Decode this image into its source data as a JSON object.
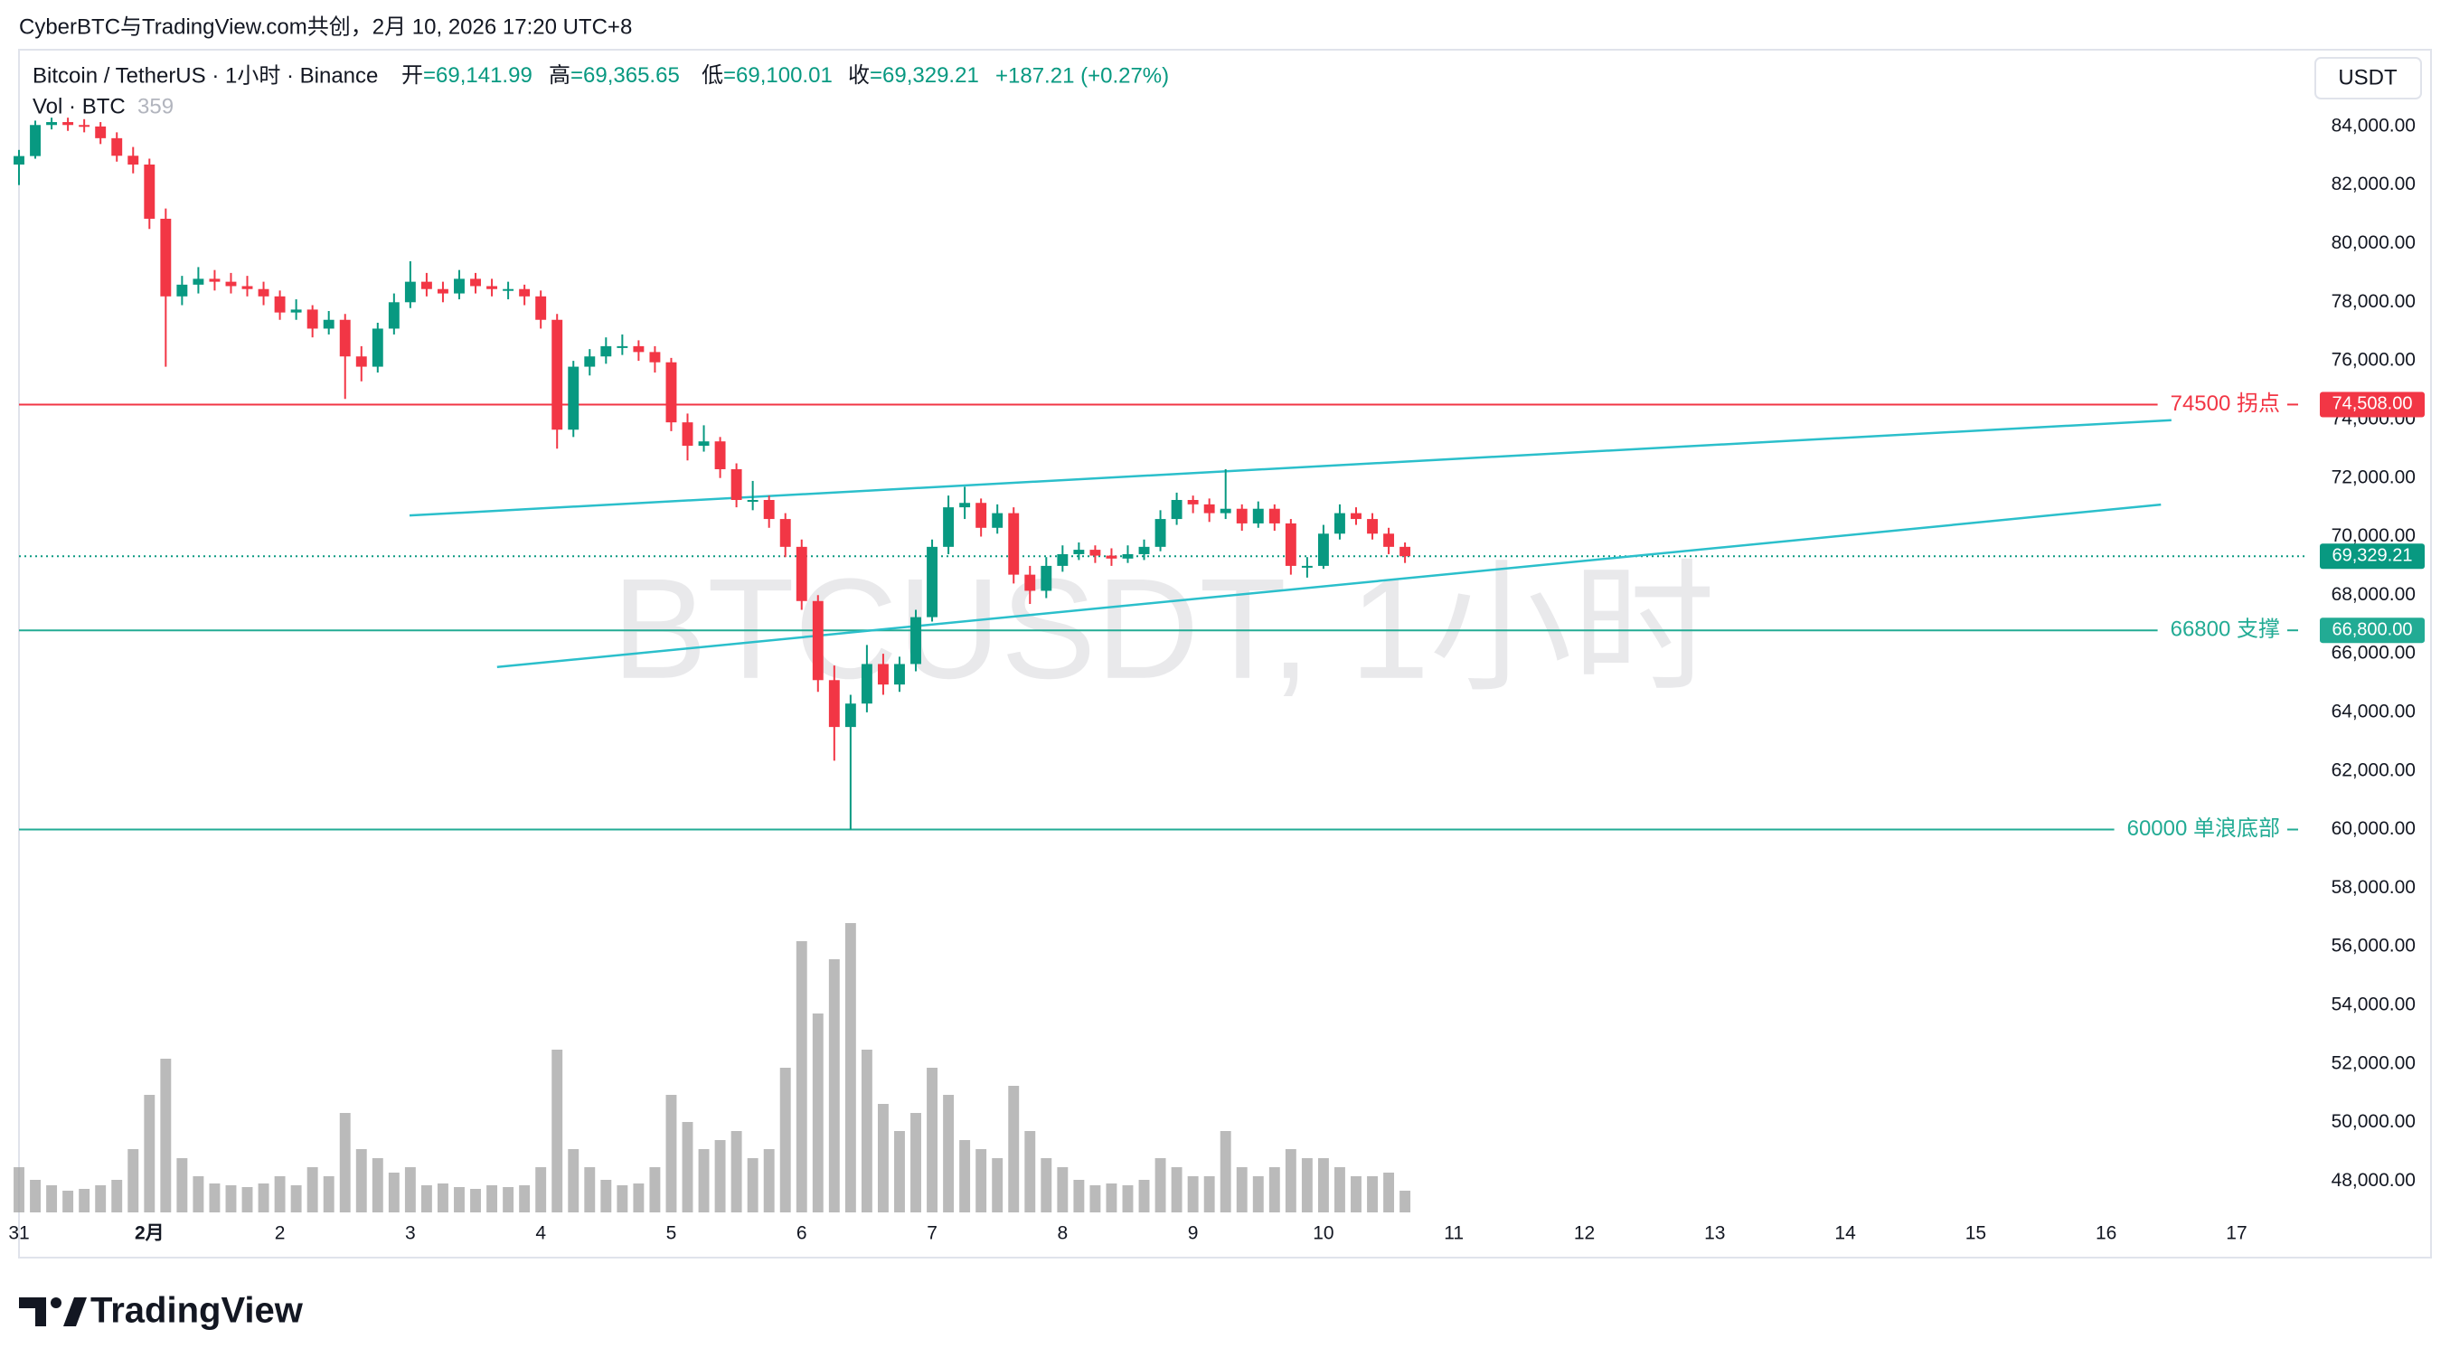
{
  "header": {
    "credit": "CyberBTC与TradingView.com共创，2月 10, 2026 17:20 UTC+8",
    "symbol": "Bitcoin / TetherUS · 1小时 · Binance",
    "ohlc": [
      {
        "label": "开",
        "value": "=69,141.99"
      },
      {
        "label": "高",
        "value": "=69,365.65"
      },
      {
        "label": "低",
        "value": "=69,100.01"
      },
      {
        "label": "收",
        "value": "=69,329.21"
      }
    ],
    "change": "+187.21 (+0.27%)",
    "volume_label": "Vol · BTC",
    "volume_value": "359",
    "currency": "USDT"
  },
  "watermark": "BTCUSDT, 1小时",
  "brand": "TradingView",
  "chart_data": {
    "type": "candlestick",
    "up_color": "#089981",
    "down_color": "#f23645",
    "volume_color": "#a3a3a3",
    "x": [
      0,
      0.125,
      0.25,
      0.375,
      0.5,
      0.625,
      0.75,
      0.875,
      1,
      1.125,
      1.25,
      1.375,
      1.5,
      1.625,
      1.75,
      1.875,
      2,
      2.125,
      2.25,
      2.375,
      2.5,
      2.625,
      2.75,
      2.875,
      3,
      3.125,
      3.25,
      3.375,
      3.5,
      3.625,
      3.75,
      3.875,
      4,
      4.125,
      4.25,
      4.375,
      4.5,
      4.625,
      4.75,
      4.875,
      5,
      5.125,
      5.25,
      5.375,
      5.5,
      5.625,
      5.75,
      5.875,
      6,
      6.125,
      6.25,
      6.375,
      6.5,
      6.625,
      6.75,
      6.875,
      7,
      7.125,
      7.25,
      7.375,
      7.5,
      7.625,
      7.75,
      7.875,
      8,
      8.125,
      8.25,
      8.375,
      8.5,
      8.625,
      8.75,
      8.875,
      9,
      9.125,
      9.25,
      9.375,
      9.5,
      9.625,
      9.75,
      9.875,
      10,
      10.125,
      10.25,
      10.375,
      10.5,
      10.625
    ],
    "ohlc": [
      [
        82700,
        83200,
        82000,
        82990
      ],
      [
        82990,
        84200,
        82900,
        84050
      ],
      [
        84050,
        84300,
        83900,
        84150
      ],
      [
        84150,
        84300,
        83850,
        84050
      ],
      [
        84050,
        84250,
        83800,
        84000
      ],
      [
        84000,
        84150,
        83400,
        83600
      ],
      [
        83600,
        83800,
        82800,
        83000
      ],
      [
        83000,
        83300,
        82400,
        82700
      ],
      [
        82700,
        82900,
        80500,
        80850
      ],
      [
        80850,
        81200,
        75800,
        78200
      ],
      [
        78200,
        78900,
        77900,
        78600
      ],
      [
        78600,
        79200,
        78300,
        78800
      ],
      [
        78800,
        79100,
        78400,
        78700
      ],
      [
        78700,
        79000,
        78300,
        78550
      ],
      [
        78550,
        78900,
        78200,
        78450
      ],
      [
        78450,
        78700,
        77900,
        78200
      ],
      [
        78200,
        78400,
        77400,
        77650
      ],
      [
        77650,
        78100,
        77400,
        77750
      ],
      [
        77750,
        77900,
        76800,
        77100
      ],
      [
        77100,
        77700,
        76900,
        77400
      ],
      [
        77400,
        77600,
        74700,
        76150
      ],
      [
        76150,
        76500,
        75300,
        75800
      ],
      [
        75800,
        77300,
        75600,
        77100
      ],
      [
        77100,
        78300,
        76900,
        78000
      ],
      [
        78000,
        79400,
        77800,
        78700
      ],
      [
        78700,
        79000,
        78200,
        78450
      ],
      [
        78450,
        78700,
        78000,
        78300
      ],
      [
        78300,
        79100,
        78100,
        78800
      ],
      [
        78800,
        79000,
        78300,
        78550
      ],
      [
        78550,
        78800,
        78200,
        78450
      ],
      [
        78450,
        78700,
        78100,
        78450
      ],
      [
        78450,
        78600,
        77900,
        78200
      ],
      [
        78200,
        78400,
        77100,
        77400
      ],
      [
        77400,
        77600,
        73000,
        73650
      ],
      [
        73650,
        76000,
        73400,
        75800
      ],
      [
        75800,
        76400,
        75500,
        76150
      ],
      [
        76150,
        76800,
        75900,
        76500
      ],
      [
        76500,
        76900,
        76200,
        76500
      ],
      [
        76500,
        76700,
        76000,
        76300
      ],
      [
        76300,
        76500,
        75600,
        75950
      ],
      [
        75950,
        76100,
        73600,
        73900
      ],
      [
        73900,
        74200,
        72600,
        73100
      ],
      [
        73100,
        73800,
        72900,
        73250
      ],
      [
        73250,
        73400,
        72000,
        72300
      ],
      [
        72300,
        72500,
        71000,
        71250
      ],
      [
        71250,
        71900,
        70900,
        71250
      ],
      [
        71250,
        71400,
        70300,
        70600
      ],
      [
        70600,
        70800,
        69300,
        69650
      ],
      [
        69650,
        69900,
        67500,
        67800
      ],
      [
        67800,
        68000,
        64700,
        65100
      ],
      [
        65100,
        65600,
        62350,
        63500
      ],
      [
        63500,
        64600,
        60000,
        64300
      ],
      [
        64300,
        66300,
        64000,
        65650
      ],
      [
        65650,
        66000,
        64600,
        64950
      ],
      [
        64950,
        65900,
        64700,
        65650
      ],
      [
        65650,
        67500,
        65400,
        67250
      ],
      [
        67250,
        69900,
        67100,
        69650
      ],
      [
        69650,
        71400,
        69400,
        71000
      ],
      [
        71000,
        71700,
        70600,
        71150
      ],
      [
        71150,
        71300,
        70000,
        70300
      ],
      [
        70300,
        71100,
        70100,
        70800
      ],
      [
        70800,
        71000,
        68400,
        68700
      ],
      [
        68700,
        69000,
        67700,
        68150
      ],
      [
        68150,
        69300,
        67900,
        69000
      ],
      [
        69000,
        69700,
        68800,
        69400
      ],
      [
        69400,
        69800,
        69200,
        69550
      ],
      [
        69550,
        69700,
        69100,
        69350
      ],
      [
        69350,
        69600,
        69000,
        69250
      ],
      [
        69250,
        69700,
        69100,
        69400
      ],
      [
        69400,
        69900,
        69200,
        69650
      ],
      [
        69650,
        70900,
        69500,
        70600
      ],
      [
        70600,
        71500,
        70400,
        71250
      ],
      [
        71250,
        71400,
        70800,
        71100
      ],
      [
        71100,
        71300,
        70500,
        70800
      ],
      [
        70800,
        72300,
        70600,
        70950
      ],
      [
        70950,
        71100,
        70200,
        70450
      ],
      [
        70450,
        71200,
        70300,
        70950
      ],
      [
        70950,
        71100,
        70200,
        70450
      ],
      [
        70450,
        70600,
        68700,
        69000
      ],
      [
        69000,
        69300,
        68600,
        69000
      ],
      [
        69000,
        70400,
        68900,
        70100
      ],
      [
        70100,
        71100,
        69900,
        70800
      ],
      [
        70800,
        71000,
        70400,
        70600
      ],
      [
        70600,
        70800,
        69900,
        70100
      ],
      [
        70100,
        70300,
        69400,
        69650
      ],
      [
        69650,
        69800,
        69100,
        69329.21
      ]
    ],
    "volume": [
      2500,
      1800,
      1500,
      1200,
      1300,
      1500,
      1800,
      3500,
      6500,
      8500,
      3000,
      2000,
      1600,
      1500,
      1400,
      1600,
      2000,
      1500,
      2500,
      2000,
      5500,
      3500,
      3000,
      2200,
      2500,
      1500,
      1600,
      1400,
      1300,
      1500,
      1400,
      1500,
      2500,
      9000,
      3500,
      2500,
      1800,
      1500,
      1600,
      2500,
      6500,
      5000,
      3500,
      4000,
      4500,
      3000,
      3500,
      8000,
      15000,
      11000,
      14000,
      16000,
      9000,
      6000,
      4500,
      5500,
      8000,
      6500,
      4000,
      3500,
      3000,
      7000,
      4500,
      3000,
      2500,
      1800,
      1500,
      1600,
      1500,
      1800,
      3000,
      2500,
      2000,
      2000,
      4500,
      2500,
      2000,
      2500,
      3500,
      3000,
      3000,
      2500,
      2000,
      2000,
      2200,
      1200
    ],
    "xlim": [
      0,
      17.52
    ],
    "ylim": [
      46930,
      86620
    ],
    "xticks": [
      {
        "value": 0,
        "label": "31"
      },
      {
        "value": 1,
        "label": "2月"
      },
      2,
      3,
      4,
      5,
      6,
      7,
      8,
      9,
      10,
      11,
      12,
      13,
      14,
      15,
      16,
      17
    ],
    "yticks": [
      {
        "value": 48000,
        "label": "48,000.00"
      },
      {
        "value": 50000,
        "label": "50,000.00"
      },
      {
        "value": 52000,
        "label": "52,000.00"
      },
      {
        "value": 54000,
        "label": "54,000.00"
      },
      {
        "value": 56000,
        "label": "56,000.00"
      },
      {
        "value": 58000,
        "label": "58,000.00"
      },
      {
        "value": 60000,
        "label": "60,000.00"
      },
      {
        "value": 62000,
        "label": "62,000.00"
      },
      {
        "value": 64000,
        "label": "64,000.00"
      },
      {
        "value": 66000,
        "label": "66,000.00"
      },
      {
        "value": 68000,
        "label": "68,000.00"
      },
      {
        "value": 70000,
        "label": "70,000.00"
      },
      {
        "value": 72000,
        "label": "72,000.00"
      },
      {
        "value": 74000,
        "label": "74,000.00"
      },
      {
        "value": 76000,
        "label": "76,000.00"
      },
      {
        "value": 78000,
        "label": "78,000.00"
      },
      {
        "value": 80000,
        "label": "80,000.00"
      },
      {
        "value": 82000,
        "label": "82,000.00"
      },
      {
        "value": 84000,
        "label": "84,000.00"
      }
    ],
    "hlines": [
      {
        "label": "74500 拐点",
        "value": 74508,
        "value_label": "74,508.00",
        "color": "#f23645"
      },
      {
        "label": "66800 支撑",
        "value": 66800,
        "value_label": "66,800.00",
        "color": "#22ab94"
      },
      {
        "label": "60000 单浪底部",
        "value": 60000,
        "color": "#22ab94"
      }
    ],
    "trendlines": [
      {
        "x": [
          2.994,
          16.5
        ],
        "y": [
          70720,
          73975
        ],
        "color": "#2bbfcb"
      },
      {
        "x": [
          3.665,
          16.42
        ],
        "y": [
          65547,
          71093
        ],
        "color": "#2bbfcb"
      }
    ],
    "last_price": {
      "value": 69329.21,
      "label": "69,329.21",
      "color": "#089981"
    }
  }
}
